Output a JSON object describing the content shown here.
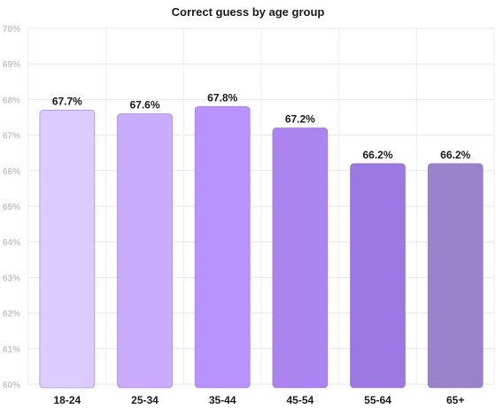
{
  "chart_data": {
    "type": "bar",
    "title": "Correct guess by age group",
    "categories": [
      "18-24",
      "25-34",
      "35-44",
      "45-54",
      "55-64",
      "65+"
    ],
    "values": [
      67.7,
      67.6,
      67.8,
      67.2,
      66.2,
      66.2
    ],
    "data_labels": [
      "67.7%",
      "67.6%",
      "67.8%",
      "67.2%",
      "66.2%",
      "66.2%"
    ],
    "ylim": [
      60,
      70
    ],
    "y_ticks": [
      60,
      61,
      62,
      63,
      64,
      65,
      66,
      67,
      68,
      69,
      70
    ],
    "y_tick_labels": [
      "60%",
      "61%",
      "62%",
      "63%",
      "64%",
      "65%",
      "66%",
      "67%",
      "68%",
      "69%",
      "70%"
    ],
    "xlabel": "",
    "ylabel": "",
    "grid": true,
    "legend": "none",
    "bar_colors": [
      "#dccbfd",
      "#c9acfb",
      "#b893fc",
      "#aa85f0",
      "#9b78e2",
      "#9a82cb"
    ],
    "bar_stroke": "#7b4fcf"
  }
}
